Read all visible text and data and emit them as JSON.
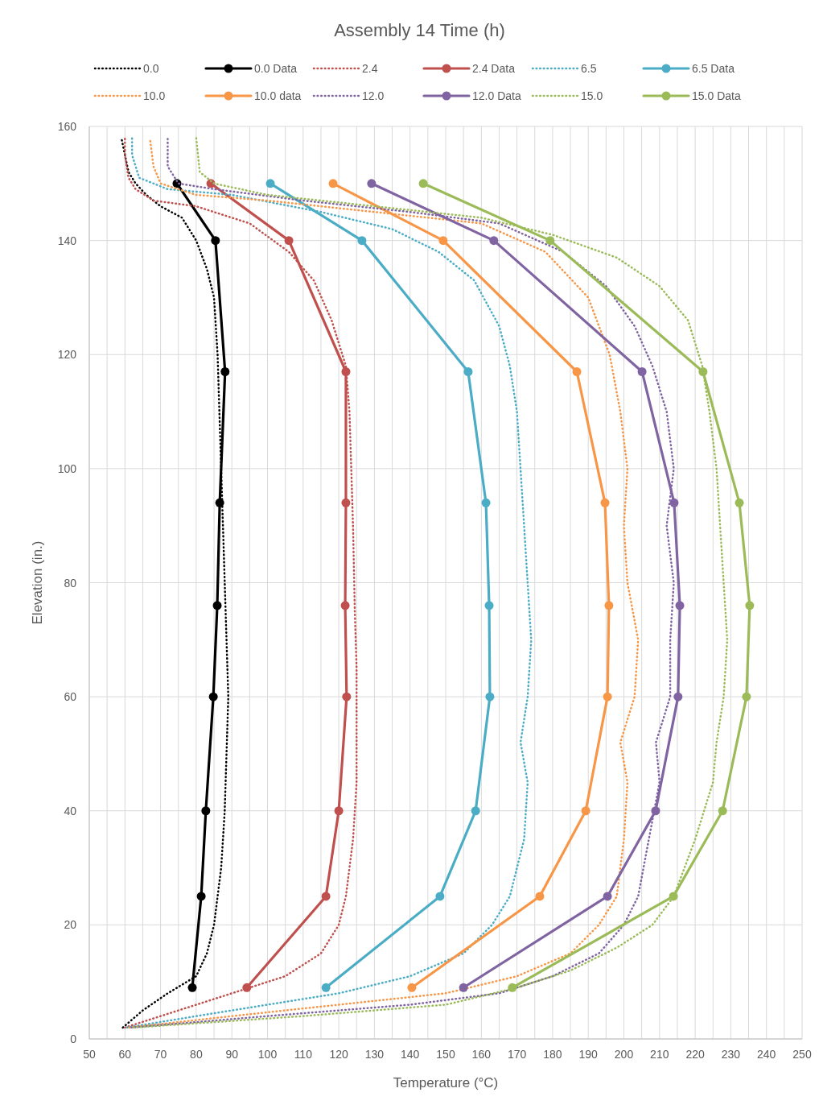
{
  "chart_data": {
    "type": "line",
    "title": "Assembly 14 Time (h)",
    "xlabel": "Temperature (°C)",
    "ylabel": "Elevation (in.)",
    "xlim": [
      50,
      250
    ],
    "ylim": [
      0,
      160
    ],
    "xticks": [
      50,
      {
        "value": 55,
        "label": null
      },
      60,
      {
        "value": 65,
        "label": null
      },
      70,
      {
        "value": 75,
        "label": null
      },
      80,
      {
        "value": 85,
        "label": null
      },
      90,
      {
        "value": 95,
        "label": null
      },
      100,
      {
        "value": 105,
        "label": null
      },
      110,
      {
        "value": 115,
        "label": null
      },
      120,
      {
        "value": 125,
        "label": null
      },
      130,
      {
        "value": 135,
        "label": null
      },
      140,
      {
        "value": 145,
        "label": null
      },
      150,
      {
        "value": 155,
        "label": null
      },
      160,
      {
        "value": 165,
        "label": null
      },
      170,
      {
        "value": 175,
        "label": null
      },
      180,
      {
        "value": 185,
        "label": null
      },
      190,
      {
        "value": 195,
        "label": null
      },
      200,
      {
        "value": 205,
        "label": null
      },
      210,
      {
        "value": 215,
        "label": null
      },
      220,
      {
        "value": 225,
        "label": null
      },
      230,
      {
        "value": 235,
        "label": null
      },
      240,
      {
        "value": 245,
        "label": null
      },
      250
    ],
    "yticks": [
      0,
      20,
      40,
      60,
      80,
      100,
      120,
      140,
      160
    ],
    "grid": true,
    "legend": "top",
    "series": [
      {
        "name": "0.0",
        "color": "#000000",
        "line_style": "dotted",
        "marker": "none",
        "x": [
          59.4,
          65,
          72,
          80,
          83,
          85,
          86,
          87,
          88,
          88.5,
          89,
          88.5,
          88,
          87.5,
          87,
          86.5,
          86,
          85,
          83,
          80,
          76,
          70,
          66,
          63,
          61,
          60,
          59
        ],
        "values": [
          2,
          5,
          8,
          11,
          15,
          20,
          25,
          30,
          40,
          50,
          60,
          70,
          80,
          90,
          100,
          110,
          120,
          130,
          135,
          140,
          144,
          146,
          148,
          150,
          152,
          155,
          158
        ]
      },
      {
        "name": "0.0 Data",
        "color": "#000000",
        "line_style": "solid",
        "marker": "circle",
        "x": [
          74.6,
          85.4,
          88.1,
          86.6,
          85.9,
          84.8,
          82.7,
          81.4,
          78.9
        ],
        "values": [
          150,
          140,
          117,
          94,
          76,
          60,
          40,
          25,
          9
        ]
      },
      {
        "name": "2.4",
        "color": "#c0504d",
        "line_style": "dotted",
        "marker": "none",
        "x": [
          60,
          75,
          90,
          105,
          115,
          120,
          122,
          124,
          125,
          125,
          125,
          124.5,
          124,
          123.5,
          123,
          122,
          118,
          113,
          106,
          95,
          80,
          68,
          63,
          61,
          60,
          60
        ],
        "values": [
          2,
          5,
          8,
          11,
          15,
          20,
          25,
          35,
          45,
          55,
          65,
          75,
          90,
          100,
          110,
          118,
          126,
          133,
          138,
          143,
          146,
          147,
          149,
          151,
          155,
          158
        ]
      },
      {
        "name": "2.4 Data",
        "color": "#c0504d",
        "line_style": "solid",
        "marker": "circle",
        "x": [
          84.1,
          106,
          122,
          122,
          121.8,
          122.2,
          120,
          116.4,
          94.2
        ],
        "values": [
          150,
          140,
          117,
          94,
          76,
          60,
          40,
          25,
          9
        ]
      },
      {
        "name": "6.5",
        "color": "#4bacc6",
        "line_style": "dotted",
        "marker": "none",
        "x": [
          60.6,
          80,
          100,
          120,
          140,
          155,
          163,
          168,
          172,
          173,
          171,
          173,
          174,
          173,
          172,
          171,
          170,
          168,
          165,
          158,
          148,
          135,
          115,
          90,
          72,
          64,
          62,
          62
        ],
        "values": [
          2,
          4,
          6,
          8,
          11,
          15,
          20,
          25,
          35,
          45,
          52,
          60,
          70,
          80,
          90,
          100,
          110,
          118,
          125,
          133,
          138,
          142,
          145,
          148,
          149,
          151,
          155,
          158
        ]
      },
      {
        "name": "6.5 Data",
        "color": "#4bacc6",
        "line_style": "solid",
        "marker": "circle",
        "x": [
          100.8,
          126.5,
          156.3,
          161.3,
          162.2,
          162.4,
          158.4,
          148.4,
          116.4
        ],
        "values": [
          150,
          140,
          117,
          94,
          76,
          60,
          40,
          25,
          9
        ]
      },
      {
        "name": "10.0",
        "color": "#f79646",
        "line_style": "dotted",
        "marker": "none",
        "x": [
          61.2,
          90,
          120,
          150,
          170,
          185,
          193,
          198,
          200,
          201,
          199,
          203,
          204,
          201,
          200,
          201,
          199,
          196,
          190,
          178,
          160,
          130,
          100,
          80,
          70,
          68,
          67
        ],
        "values": [
          2,
          4,
          6,
          8,
          11,
          15,
          20,
          25,
          35,
          45,
          52,
          60,
          70,
          80,
          90,
          100,
          110,
          120,
          130,
          138,
          143,
          145,
          147,
          148,
          150,
          153,
          158
        ]
      },
      {
        "name": "10.0 data",
        "color": "#f79646",
        "line_style": "solid",
        "marker": "circle",
        "x": [
          118.4,
          149.3,
          186.8,
          194.7,
          195.8,
          195.4,
          189.3,
          176.4,
          140.5
        ],
        "values": [
          150,
          140,
          117,
          94,
          76,
          60,
          40,
          25,
          9
        ]
      },
      {
        "name": "12.0",
        "color": "#8064a2",
        "line_style": "dotted",
        "marker": "none",
        "x": [
          61.8,
          100,
          140,
          165,
          180,
          193,
          200,
          204,
          207,
          210,
          209,
          213,
          213,
          214,
          212,
          214,
          212,
          208,
          203,
          195,
          183,
          165,
          140,
          110,
          85,
          75,
          72,
          72
        ],
        "values": [
          2,
          4,
          6,
          8,
          11,
          15,
          20,
          25,
          35,
          45,
          52,
          60,
          70,
          80,
          90,
          100,
          110,
          118,
          125,
          132,
          138,
          143,
          145,
          147,
          149,
          150,
          153,
          158
        ]
      },
      {
        "name": "12.0 Data",
        "color": "#8064a2",
        "line_style": "solid",
        "marker": "circle",
        "x": [
          129.2,
          163.5,
          205.1,
          214.1,
          215.7,
          215.2,
          208.9,
          195.4,
          155
        ],
        "values": [
          150,
          140,
          117,
          94,
          76,
          60,
          40,
          25,
          9
        ]
      },
      {
        "name": "15.0",
        "color": "#9bbb59",
        "line_style": "dotted",
        "marker": "none",
        "x": [
          62.4,
          110,
          150,
          170,
          185,
          198,
          208,
          214,
          220,
          225,
          226,
          228,
          229,
          228,
          227,
          226,
          224,
          222,
          218,
          210,
          198,
          180,
          160,
          130,
          100,
          85,
          81,
          80
        ],
        "values": [
          2,
          4,
          6,
          9,
          12,
          16,
          20,
          25,
          35,
          45,
          52,
          60,
          70,
          80,
          90,
          100,
          110,
          118,
          126,
          132,
          137,
          141,
          144,
          146,
          148,
          150,
          152,
          158
        ]
      },
      {
        "name": "15.0 Data",
        "color": "#9bbb59",
        "line_style": "solid",
        "marker": "circle",
        "x": [
          143.7,
          179.3,
          222.2,
          232.4,
          235.3,
          234.4,
          227.7,
          213.9,
          168.7
        ],
        "values": [
          150,
          140,
          117,
          94,
          76,
          60,
          40,
          25,
          9
        ]
      }
    ]
  }
}
